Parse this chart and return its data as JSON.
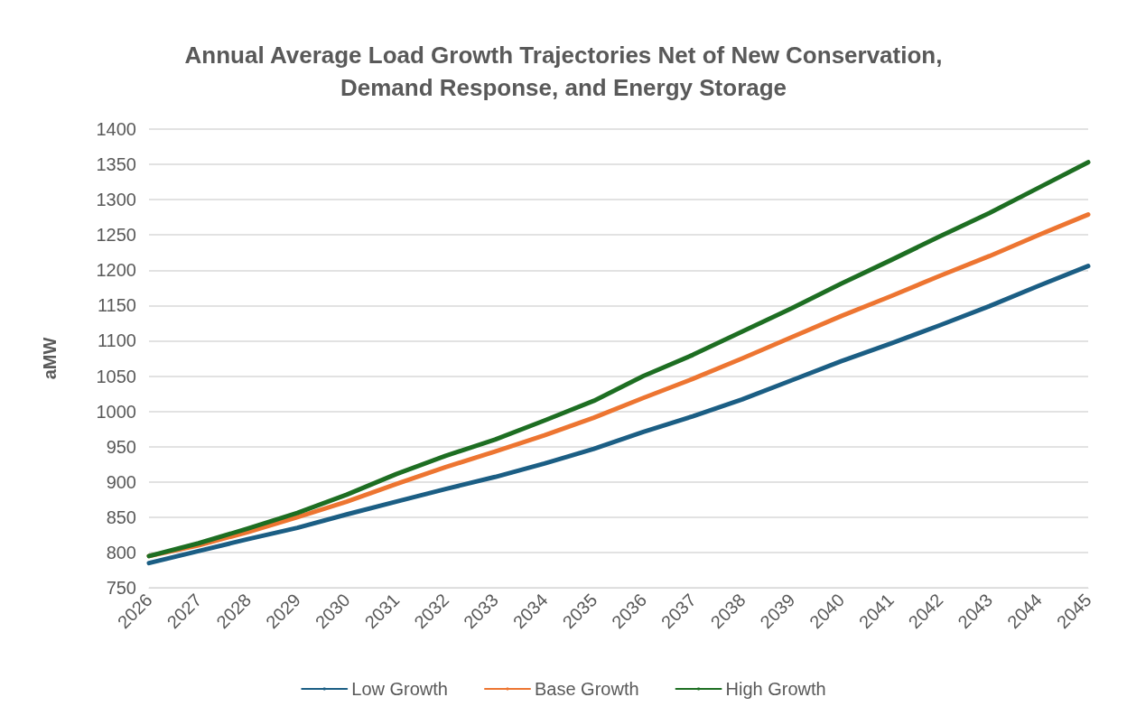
{
  "chart_data": {
    "type": "line",
    "title": "Annual Average Load Growth Trajectories Net of New Conservation,\nDemand Response, and Energy Storage",
    "ylabel": "aMW",
    "categories": [
      "2026",
      "2027",
      "2028",
      "2029",
      "2030",
      "2031",
      "2032",
      "2033",
      "2034",
      "2035",
      "2036",
      "2037",
      "2038",
      "2039",
      "2040",
      "2041",
      "2042",
      "2043",
      "2044",
      "2045"
    ],
    "series": [
      {
        "name": "Low Growth",
        "color": "#1b5e84",
        "values": [
          785,
          802,
          819,
          835,
          854,
          872,
          890,
          907,
          926,
          947,
          971,
          993,
          1017,
          1044,
          1071,
          1096,
          1122,
          1149,
          1178,
          1206
        ]
      },
      {
        "name": "Base Growth",
        "color": "#ed7531",
        "values": [
          795,
          810,
          829,
          850,
          872,
          897,
          921,
          943,
          966,
          991,
          1019,
          1046,
          1075,
          1105,
          1135,
          1163,
          1192,
          1220,
          1250,
          1279
        ]
      },
      {
        "name": "High Growth",
        "color": "#1d6e22",
        "values": [
          795,
          813,
          834,
          856,
          882,
          911,
          937,
          960,
          987,
          1015,
          1050,
          1080,
          1113,
          1146,
          1181,
          1214,
          1248,
          1281,
          1317,
          1353
        ]
      }
    ],
    "ylim": [
      750,
      1400
    ],
    "yticks": [
      750,
      800,
      850,
      900,
      950,
      1000,
      1050,
      1100,
      1150,
      1200,
      1250,
      1300,
      1350,
      1400
    ],
    "grid": "y",
    "legend": "bottom",
    "marker": "none",
    "line_style": "solid"
  }
}
